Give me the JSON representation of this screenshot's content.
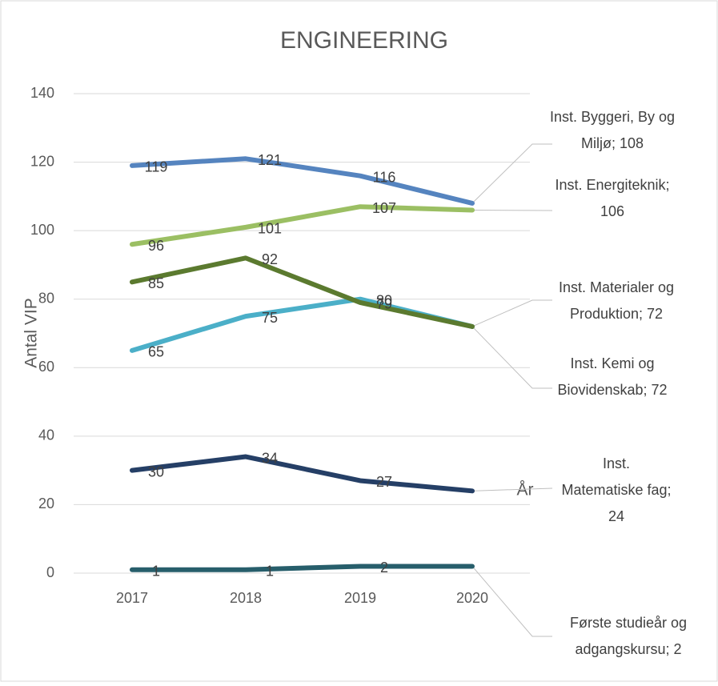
{
  "chart_data": {
    "type": "line",
    "title": "ENGINEERING",
    "y_label": "Antal VIP",
    "x_label": "År",
    "categories": [
      "2017",
      "2018",
      "2019",
      "2020"
    ],
    "ylim": [
      0,
      140
    ],
    "yticks": [
      0,
      20,
      40,
      60,
      80,
      100,
      120,
      140
    ],
    "grid": true,
    "series": [
      {
        "label": "Inst. Byggeri, By og Miljø; 108",
        "color": "#5584bf",
        "values": [
          119,
          121,
          116,
          108
        ]
      },
      {
        "label": "Inst. Energiteknik; 106",
        "color": "#9bbf63",
        "values": [
          96,
          101,
          107,
          106
        ]
      },
      {
        "label": "Inst. Kemi og Biovidenskab; 72",
        "color": "#4bafc8",
        "values": [
          65,
          75,
          80,
          72
        ]
      },
      {
        "label": "Inst. Materialer og Produktion; 72",
        "color": "#5b7a2f",
        "values": [
          85,
          92,
          79,
          72
        ]
      },
      {
        "label": "Inst. Matematiske fag; 24",
        "color": "#253f66",
        "values": [
          30,
          34,
          27,
          24
        ]
      },
      {
        "label": "Første studieår og adgangskursu; 2",
        "color": "#275e6b",
        "values": [
          1,
          1,
          2,
          2
        ]
      }
    ]
  }
}
